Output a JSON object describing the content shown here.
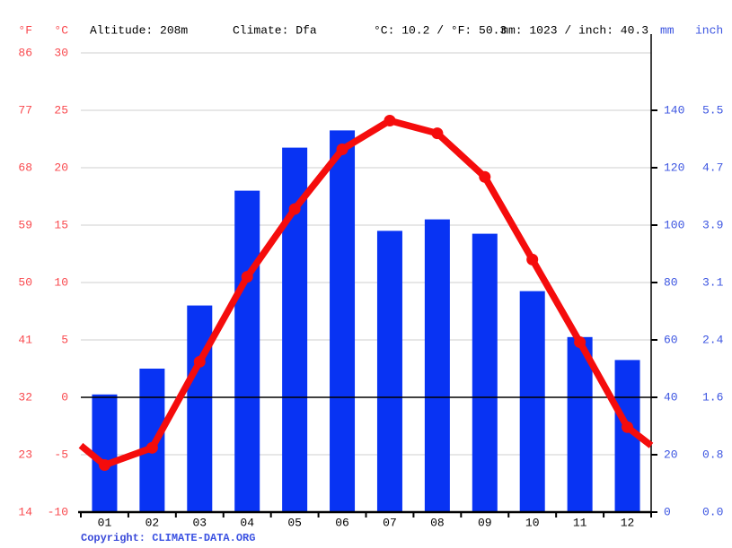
{
  "header": {
    "f_label": "°F",
    "c_label": "°C",
    "altitude": "Altitude: 208m",
    "climate": "Climate: Dfa",
    "temperature_summary": "°C: 10.2 / °F: 50.3",
    "precipitation_summary": "mm: 1023 / inch: 40.3",
    "mm_label": "mm",
    "inch_label": "inch"
  },
  "footer": {
    "copyright_prefix": "Copyright: ",
    "copyright_link": "CLIMATE-DATA.ORG"
  },
  "chart_data": {
    "type": "bar",
    "subtype": "climograph (bar + line)",
    "categories": [
      "01",
      "02",
      "03",
      "04",
      "05",
      "06",
      "07",
      "08",
      "09",
      "10",
      "11",
      "12"
    ],
    "series": [
      {
        "name": "precipitation",
        "type": "bar",
        "unit": "mm",
        "values": [
          41,
          50,
          72,
          112,
          127,
          133,
          98,
          102,
          97,
          77,
          61,
          53
        ],
        "total_mm": 1023,
        "color": "#0833f3"
      },
      {
        "name": "temperature",
        "type": "line",
        "unit": "°C",
        "values": [
          -5.9,
          -4.4,
          3.1,
          10.5,
          16.4,
          21.6,
          24.1,
          23.0,
          19.2,
          12.0,
          4.8,
          -2.6
        ],
        "edge_values": [
          -4.2,
          -4.2
        ],
        "mean_c": 10.2,
        "color": "#f50c0c"
      }
    ],
    "axes": {
      "left_f": {
        "title": "°F",
        "ticks": [
          86,
          77,
          68,
          59,
          50,
          41,
          32,
          23,
          14
        ]
      },
      "left_c": {
        "title": "°C",
        "ticks": [
          30,
          25,
          20,
          15,
          10,
          5,
          0,
          -5,
          -10
        ],
        "range": [
          -10,
          30
        ]
      },
      "right_mm": {
        "title": "mm",
        "ticks": [
          140,
          120,
          100,
          80,
          60,
          40,
          20,
          0
        ],
        "range": [
          0,
          160
        ]
      },
      "right_inch": {
        "title": "inch",
        "ticks": [
          "5.5",
          "4.7",
          "3.9",
          "3.1",
          "2.4",
          "1.6",
          "0.8",
          "0.0"
        ]
      }
    },
    "grid": true,
    "zero_line_c": 0,
    "legend": "none",
    "colors": {
      "bar": "#0833f3",
      "line": "#f50c0c",
      "grid": "#cfcfcf",
      "axis": "#000000",
      "left_labels": "#f9494e",
      "right_labels": "#3c55e1"
    }
  }
}
